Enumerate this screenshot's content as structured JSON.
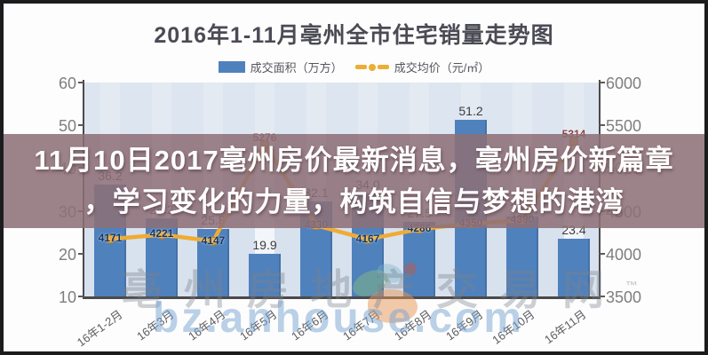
{
  "title": "2016年1-11月亳州全市住宅销量走势图",
  "legend": {
    "bar_label": "成交面积（万方）",
    "line_label": "成交均价（元/㎡）"
  },
  "overlay": {
    "line1": "11月10日2017亳州房价最新消息，亳州房价新篇章",
    "line2": "，学习变化的力量，构筑自信与梦想的港湾"
  },
  "watermark": {
    "site_name": "亳州房地产交易网",
    "tm": "™",
    "url": "bz.anhouse.com"
  },
  "colors": {
    "bar": "#4f81bd",
    "line": "#efab33",
    "marker_fill": "#e9a63a",
    "marker_stroke": "#b57f22",
    "line_label": "#17375e",
    "line_label_peak": "#8e4040",
    "stripe": "rgba(190,206,228,0.5)",
    "overlay_bg": "rgba(141,111,119,0.87)"
  },
  "chart_data": {
    "type": "bar+line combo",
    "categories": [
      "16年1-2月",
      "16年3月",
      "16年4月",
      "16年5月",
      "16年6月",
      "16年7月",
      "16年8月",
      "16年9月",
      "16年10月",
      "16年11月"
    ],
    "series": [
      {
        "name": "成交面积 (万方)",
        "type": "bar",
        "axis": "left",
        "values": [
          36.2,
          28.2,
          25.8,
          19.9,
          32.1,
          34.0,
          27.5,
          51.2,
          28.6,
          23.4
        ]
      },
      {
        "name": "成交均价 (元/㎡)",
        "type": "line",
        "axis": "right",
        "values": [
          4171,
          4221,
          4147,
          5276,
          4330,
          4167,
          4286,
          4350,
          4390,
          5314
        ]
      }
    ],
    "estimated_value_indices": {
      "bar": [
        5,
        6,
        8
      ],
      "line": [
        7,
        8
      ]
    },
    "peak_label_indices": [
      3,
      9
    ],
    "left_axis": {
      "ticks": [
        60,
        50,
        40,
        30,
        20,
        10
      ],
      "range": [
        10,
        60
      ]
    },
    "right_axis": {
      "ticks": [
        6000,
        5500,
        5000,
        4500,
        4000,
        3500
      ],
      "range": [
        3500,
        6000
      ]
    },
    "grid": "vertical category stripes",
    "legend_position": "top"
  }
}
